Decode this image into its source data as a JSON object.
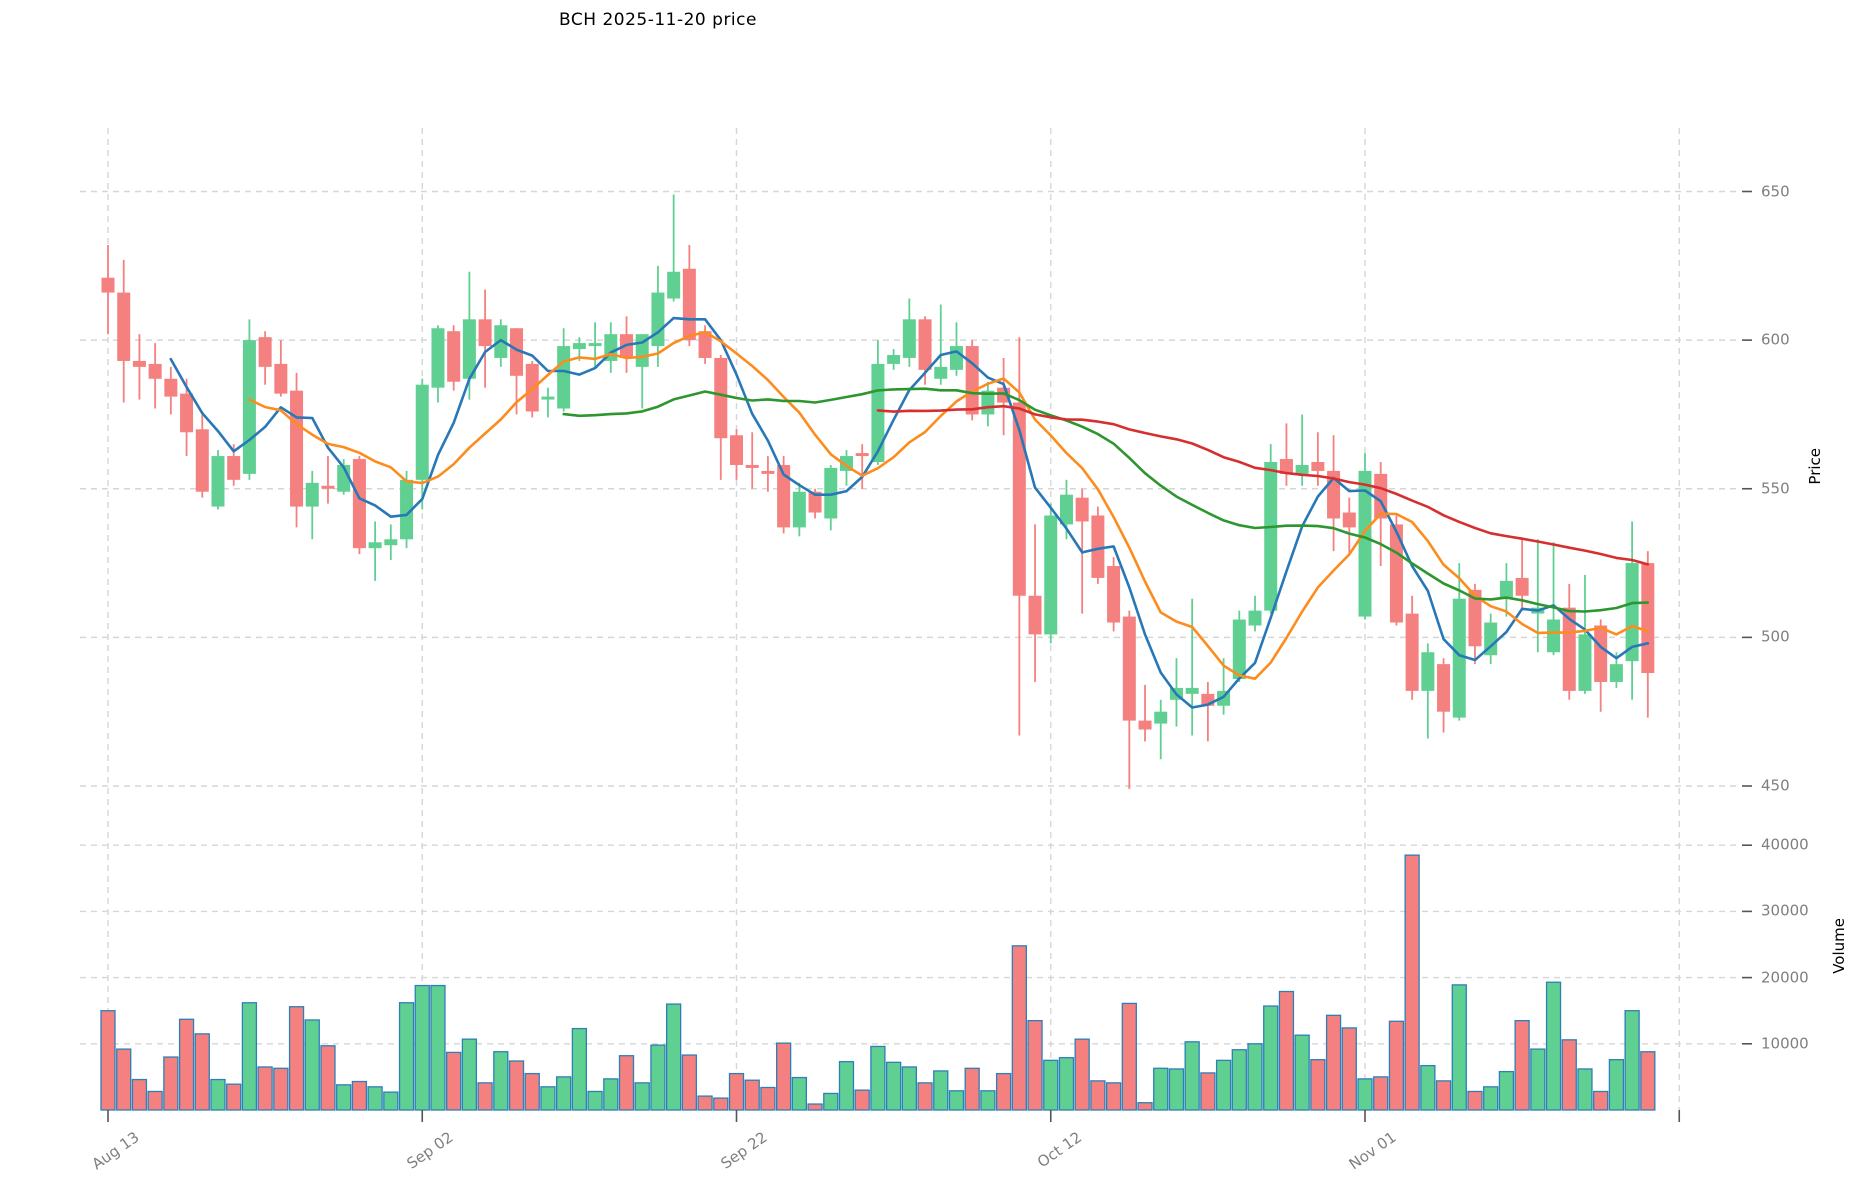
{
  "title": "BCH  2025-11-20  price",
  "colors": {
    "background": "#ffffff",
    "up": "#60d092",
    "down": "#f4807f",
    "volume_edge": "#2d7fb8",
    "grid": "#d6d6d6",
    "tick_mark": "#555555",
    "tick_text": "#7f7f7f",
    "ma5": "#2878b8",
    "ma10": "#fd8c1e",
    "ma30": "#2e962e",
    "ma50": "#d62f2f"
  },
  "chart_data": {
    "type": "candlestick",
    "title": "BCH  2025-11-20  price",
    "legend_position": "none",
    "grid": "dashed",
    "price_axis": {
      "label": "Price",
      "ticks": [
        450,
        500,
        550,
        600,
        650
      ],
      "ylim": [
        435,
        665
      ]
    },
    "volume_axis": {
      "label": "Volume",
      "ticks": [
        10000,
        20000,
        30000,
        40000
      ],
      "ylim": [
        0,
        42000
      ]
    },
    "x_ticks": [
      {
        "index": 0,
        "label": "Aug 13"
      },
      {
        "index": 20,
        "label": "Sep 02"
      },
      {
        "index": 40,
        "label": "Sep 22"
      },
      {
        "index": 60,
        "label": "Oct 12"
      },
      {
        "index": 80,
        "label": "Nov 01"
      },
      {
        "index": 100,
        "label": ""
      }
    ],
    "moving_averages": [
      {
        "period": 5,
        "color_key": "ma5"
      },
      {
        "period": 10,
        "color_key": "ma10"
      },
      {
        "period": 30,
        "color_key": "ma30"
      },
      {
        "period": 50,
        "color_key": "ma50"
      }
    ],
    "candles": [
      [
        "2025-08-13",
        621,
        632,
        602,
        616,
        15000
      ],
      [
        "2025-08-14",
        616,
        627,
        579,
        593,
        9200
      ],
      [
        "2025-08-15",
        593,
        602,
        580,
        591,
        4600
      ],
      [
        "2025-08-16",
        592,
        599,
        577,
        587,
        2800
      ],
      [
        "2025-08-17",
        587,
        591,
        575,
        581,
        8000
      ],
      [
        "2025-08-18",
        582,
        587,
        561,
        569,
        13700
      ],
      [
        "2025-08-19",
        570,
        575,
        547,
        549,
        11500
      ],
      [
        "2025-08-20",
        544,
        563,
        543,
        561,
        4600
      ],
      [
        "2025-08-21",
        561,
        565,
        551,
        553,
        3900
      ],
      [
        "2025-08-22",
        555,
        607,
        553,
        600,
        16200
      ],
      [
        "2025-08-23",
        601,
        603,
        585,
        591,
        6500
      ],
      [
        "2025-08-24",
        592,
        600,
        581,
        582,
        6300
      ],
      [
        "2025-08-25",
        583,
        589,
        537,
        544,
        15600
      ],
      [
        "2025-08-26",
        544,
        556,
        533,
        552,
        13600
      ],
      [
        "2025-08-27",
        551,
        561,
        545,
        550,
        9700
      ],
      [
        "2025-08-28",
        549,
        560,
        548,
        558,
        3800
      ],
      [
        "2025-08-29",
        560,
        561,
        528,
        530,
        4300
      ],
      [
        "2025-08-30",
        530,
        539,
        519,
        532,
        3500
      ],
      [
        "2025-08-31",
        531,
        538,
        526,
        533,
        2700
      ],
      [
        "2025-09-01",
        533,
        556,
        530,
        553,
        16200
      ],
      [
        "2025-09-02",
        553,
        587,
        543,
        585,
        18800
      ],
      [
        "2025-09-03",
        584,
        605,
        579,
        604,
        18800
      ],
      [
        "2025-09-04",
        603,
        605,
        583,
        586,
        8700
      ],
      [
        "2025-09-05",
        587,
        623,
        580,
        607,
        10700
      ],
      [
        "2025-09-06",
        607,
        617,
        584,
        598,
        4100
      ],
      [
        "2025-09-07",
        594,
        607,
        591,
        605,
        8800
      ],
      [
        "2025-09-08",
        604,
        604,
        575,
        588,
        7400
      ],
      [
        "2025-09-09",
        592,
        593,
        574,
        576,
        5500
      ],
      [
        "2025-09-10",
        580,
        584,
        574,
        581,
        3500
      ],
      [
        "2025-09-11",
        577,
        604,
        576,
        598,
        5000
      ],
      [
        "2025-09-12",
        597,
        601,
        593,
        599,
        12300
      ],
      [
        "2025-09-13",
        598,
        606,
        591,
        599,
        2800
      ],
      [
        "2025-09-14",
        593,
        606,
        589,
        602,
        4700
      ],
      [
        "2025-09-15",
        602,
        608,
        589,
        594,
        8200
      ],
      [
        "2025-09-16",
        591,
        602,
        577,
        602,
        4100
      ],
      [
        "2025-09-17",
        598,
        625,
        591,
        616,
        9800
      ],
      [
        "2025-09-18",
        614,
        649,
        613,
        623,
        16000
      ],
      [
        "2025-09-19",
        624,
        632,
        598,
        600,
        8300
      ],
      [
        "2025-09-20",
        603,
        605,
        592,
        594,
        2100
      ],
      [
        "2025-09-21",
        594,
        595,
        553,
        567,
        1800
      ],
      [
        "2025-09-22",
        568,
        570,
        553,
        558,
        5500
      ],
      [
        "2025-09-23",
        558,
        569,
        550,
        557,
        4500
      ],
      [
        "2025-09-24",
        556,
        561,
        549,
        555,
        3400
      ],
      [
        "2025-09-25",
        558,
        561,
        535,
        537,
        10100
      ],
      [
        "2025-09-26",
        537,
        552,
        534,
        549,
        4900
      ],
      [
        "2025-09-27",
        549,
        550,
        540,
        542,
        900
      ],
      [
        "2025-09-28",
        540,
        558,
        536,
        557,
        2500
      ],
      [
        "2025-09-29",
        556,
        563,
        551,
        561,
        7300
      ],
      [
        "2025-09-30",
        562,
        565,
        550,
        561,
        3000
      ],
      [
        "2025-10-01",
        559,
        600,
        558,
        592,
        9600
      ],
      [
        "2025-10-02",
        592,
        597,
        590,
        595,
        7200
      ],
      [
        "2025-10-03",
        594,
        614,
        591,
        607,
        6500
      ],
      [
        "2025-10-04",
        607,
        608,
        585,
        590,
        4100
      ],
      [
        "2025-10-05",
        587,
        612,
        585,
        591,
        5900
      ],
      [
        "2025-10-06",
        590,
        606,
        588,
        598,
        2900
      ],
      [
        "2025-10-07",
        598,
        600,
        573,
        575,
        6300
      ],
      [
        "2025-10-08",
        575,
        586,
        571,
        583,
        2900
      ],
      [
        "2025-10-09",
        584,
        594,
        568,
        579,
        5500
      ],
      [
        "2025-10-10",
        579,
        601,
        467,
        514,
        24800
      ],
      [
        "2025-10-11",
        514,
        538,
        485,
        501,
        13500
      ],
      [
        "2025-10-12",
        501,
        545,
        498,
        541,
        7500
      ],
      [
        "2025-10-13",
        538,
        553,
        533,
        548,
        7900
      ],
      [
        "2025-10-14",
        547,
        550,
        508,
        539,
        10700
      ],
      [
        "2025-10-15",
        541,
        544,
        518,
        520,
        4400
      ],
      [
        "2025-10-16",
        524,
        527,
        502,
        505,
        4100
      ],
      [
        "2025-10-17",
        507,
        509,
        449,
        472,
        16100
      ],
      [
        "2025-10-18",
        472,
        484,
        465,
        469,
        1100
      ],
      [
        "2025-10-19",
        471,
        479,
        459,
        475,
        6300
      ],
      [
        "2025-10-20",
        479,
        493,
        470,
        483,
        6200
      ],
      [
        "2025-10-21",
        481,
        513,
        467,
        483,
        10300
      ],
      [
        "2025-10-22",
        481,
        485,
        465,
        477,
        5600
      ],
      [
        "2025-10-23",
        477,
        493,
        474,
        482,
        7500
      ],
      [
        "2025-10-24",
        486,
        509,
        485,
        506,
        9100
      ],
      [
        "2025-10-25",
        504,
        514,
        502,
        509,
        10000
      ],
      [
        "2025-10-26",
        509,
        565,
        508,
        559,
        15700
      ],
      [
        "2025-10-27",
        560,
        572,
        551,
        555,
        17900
      ],
      [
        "2025-10-28",
        555,
        575,
        551,
        558,
        11300
      ],
      [
        "2025-10-29",
        559,
        569,
        551,
        556,
        7600
      ],
      [
        "2025-10-30",
        556,
        568,
        529,
        540,
        14300
      ],
      [
        "2025-10-31",
        542,
        547,
        528,
        537,
        12400
      ],
      [
        "2025-11-01",
        507,
        562,
        506,
        556,
        4700
      ],
      [
        "2025-11-02",
        555,
        559,
        524,
        540,
        5000
      ],
      [
        "2025-11-03",
        538,
        541,
        504,
        505,
        13400
      ],
      [
        "2025-11-04",
        508,
        514,
        479,
        482,
        38500
      ],
      [
        "2025-11-05",
        482,
        498,
        466,
        495,
        6700
      ],
      [
        "2025-11-06",
        491,
        493,
        468,
        475,
        4400
      ],
      [
        "2025-11-07",
        473,
        525,
        472,
        513,
        18900
      ],
      [
        "2025-11-08",
        516,
        518,
        491,
        497,
        2800
      ],
      [
        "2025-11-09",
        494,
        508,
        491,
        505,
        3500
      ],
      [
        "2025-11-10",
        513,
        525,
        507,
        519,
        5800
      ],
      [
        "2025-11-11",
        520,
        533,
        509,
        514,
        13500
      ],
      [
        "2025-11-12",
        508,
        533,
        495,
        510,
        9200
      ],
      [
        "2025-11-13",
        495,
        532,
        494,
        506,
        19300
      ],
      [
        "2025-11-14",
        510,
        518,
        479,
        482,
        10600
      ],
      [
        "2025-11-15",
        482,
        521,
        481,
        501,
        6200
      ],
      [
        "2025-11-16",
        504,
        506,
        475,
        485,
        2800
      ],
      [
        "2025-11-17",
        485,
        495,
        483,
        491,
        7600
      ],
      [
        "2025-11-18",
        492,
        539,
        479,
        525,
        15000
      ],
      [
        "2025-11-19",
        525,
        529,
        473,
        488,
        8800
      ]
    ]
  }
}
